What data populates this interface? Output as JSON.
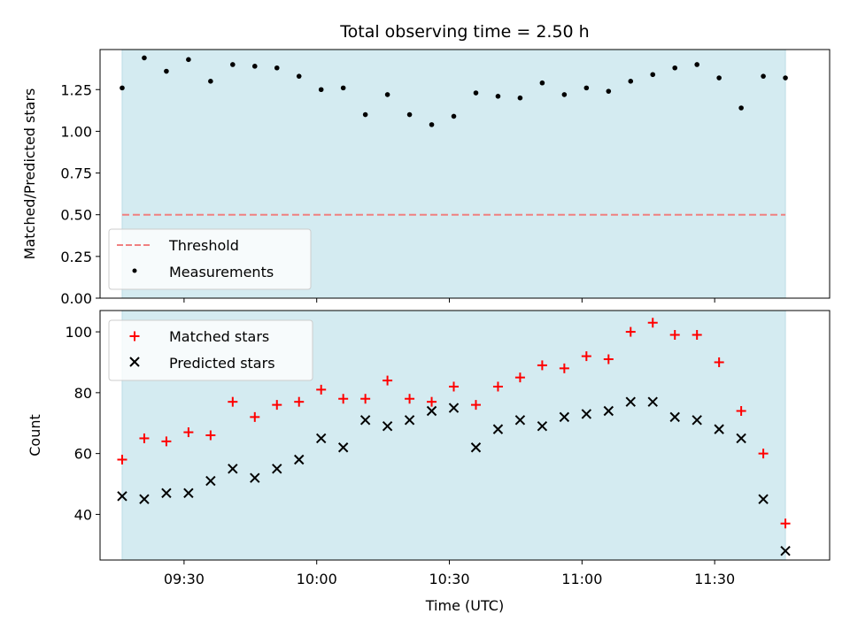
{
  "chart_data": [
    {
      "type": "scatter",
      "title": "Total observing time = 2.50 h",
      "ylabel": "Matched/Predicted stars",
      "xlabel": "",
      "xlim": [
        "09:11",
        "11:56"
      ],
      "ylim": [
        0,
        1.49
      ],
      "yticks": [
        "0.00",
        "0.25",
        "0.50",
        "0.75",
        "1.00",
        "1.25"
      ],
      "xticks": [
        "09:30",
        "10:00",
        "10:30",
        "11:00",
        "11:30"
      ],
      "shaded_span": [
        "09:16",
        "11:46"
      ],
      "shade_color": "#d4ebf1",
      "grid": false,
      "legend_position": "lower-left",
      "threshold": {
        "name": "Threshold",
        "value": 0.5,
        "color": "#f08080"
      },
      "series": [
        {
          "name": "Measurements",
          "color": "#000000",
          "x": [
            "09:16",
            "09:21",
            "09:26",
            "09:31",
            "09:36",
            "09:41",
            "09:46",
            "09:51",
            "09:56",
            "10:01",
            "10:06",
            "10:11",
            "10:16",
            "10:21",
            "10:26",
            "10:31",
            "10:36",
            "10:41",
            "10:46",
            "10:51",
            "10:56",
            "11:01",
            "11:06",
            "11:11",
            "11:16",
            "11:21",
            "11:26",
            "11:31",
            "11:36",
            "11:41",
            "11:46"
          ],
          "values": [
            1.26,
            1.44,
            1.36,
            1.43,
            1.3,
            1.4,
            1.39,
            1.38,
            1.33,
            1.25,
            1.26,
            1.1,
            1.22,
            1.1,
            1.04,
            1.09,
            1.23,
            1.21,
            1.2,
            1.29,
            1.22,
            1.26,
            1.24,
            1.3,
            1.34,
            1.38,
            1.4,
            1.32,
            1.14,
            1.33,
            1.32
          ]
        }
      ]
    },
    {
      "type": "scatter",
      "title": "",
      "ylabel": "Count",
      "xlabel": "Time (UTC)",
      "xlim": [
        "09:11",
        "11:56"
      ],
      "ylim": [
        25,
        107
      ],
      "yticks": [
        "40",
        "60",
        "80",
        "100"
      ],
      "xticks": [
        "09:30",
        "10:00",
        "10:30",
        "11:00",
        "11:30"
      ],
      "shaded_span": [
        "09:16",
        "11:46"
      ],
      "shade_color": "#d4ebf1",
      "grid": false,
      "legend_position": "upper-left",
      "series": [
        {
          "name": "Matched stars",
          "marker": "plus",
          "color": "#ff0000",
          "x": [
            "09:16",
            "09:21",
            "09:26",
            "09:31",
            "09:36",
            "09:41",
            "09:46",
            "09:51",
            "09:56",
            "10:01",
            "10:06",
            "10:11",
            "10:16",
            "10:21",
            "10:26",
            "10:31",
            "10:36",
            "10:41",
            "10:46",
            "10:51",
            "10:56",
            "11:01",
            "11:06",
            "11:11",
            "11:16",
            "11:21",
            "11:26",
            "11:31",
            "11:36",
            "11:41",
            "11:46"
          ],
          "values": [
            58,
            65,
            64,
            67,
            66,
            77,
            72,
            76,
            77,
            81,
            78,
            78,
            84,
            78,
            77,
            82,
            76,
            82,
            85,
            89,
            88,
            92,
            91,
            100,
            103,
            99,
            99,
            90,
            74,
            60,
            37
          ]
        },
        {
          "name": "Predicted stars",
          "marker": "x",
          "color": "#000000",
          "x": [
            "09:16",
            "09:21",
            "09:26",
            "09:31",
            "09:36",
            "09:41",
            "09:46",
            "09:51",
            "09:56",
            "10:01",
            "10:06",
            "10:11",
            "10:16",
            "10:21",
            "10:26",
            "10:31",
            "10:36",
            "10:41",
            "10:46",
            "10:51",
            "10:56",
            "11:01",
            "11:06",
            "11:11",
            "11:16",
            "11:21",
            "11:26",
            "11:31",
            "11:36",
            "11:41",
            "11:46"
          ],
          "values": [
            46,
            45,
            47,
            47,
            51,
            55,
            52,
            55,
            58,
            65,
            62,
            71,
            69,
            71,
            74,
            75,
            62,
            68,
            71,
            69,
            72,
            73,
            74,
            77,
            77,
            72,
            71,
            68,
            65,
            45,
            28
          ]
        }
      ]
    }
  ]
}
